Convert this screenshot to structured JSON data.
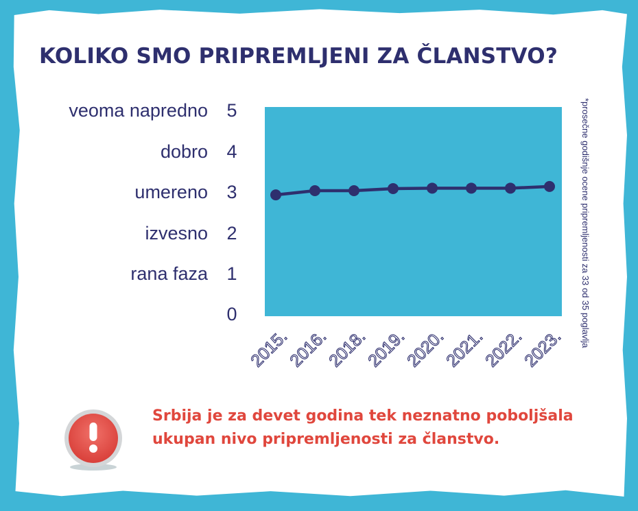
{
  "title": "KOLIKO SMO PRIPREMLJENI ZA ČLANSTVO?",
  "y_axis": {
    "level_labels": [
      "veoma napredno",
      "dobro",
      "umereno",
      "izvesno",
      "rana faza"
    ],
    "tick_labels": [
      "5",
      "4",
      "3",
      "2",
      "1",
      "0"
    ]
  },
  "footnote": "*prosečne godišnje ocene pripremljenosti za 33 od 35 poglavlja",
  "alert": {
    "icon": "exclamation-icon",
    "text": "Srbija je za devet godina tek neznatno poboljšala ukupan nivo pripremljenosti za članstvo."
  },
  "colors": {
    "background": "#3fb6d6",
    "plot_area": "#3fb6d6",
    "line": "#2e2f6e",
    "text": "#2e2f6e",
    "alert_text": "#e0473d"
  },
  "chart_data": {
    "type": "line",
    "categories": [
      "2015.",
      "2016.",
      "2018.",
      "2019.",
      "2020.",
      "2021.",
      "2022.",
      "2023."
    ],
    "series": [
      {
        "values": [
          2.9,
          3.0,
          3.0,
          3.05,
          3.06,
          3.06,
          3.06,
          3.1
        ]
      }
    ],
    "ylim": [
      0,
      5
    ],
    "yticks": [
      0,
      1,
      2,
      3,
      4,
      5
    ],
    "grid": false,
    "legend": "none"
  }
}
